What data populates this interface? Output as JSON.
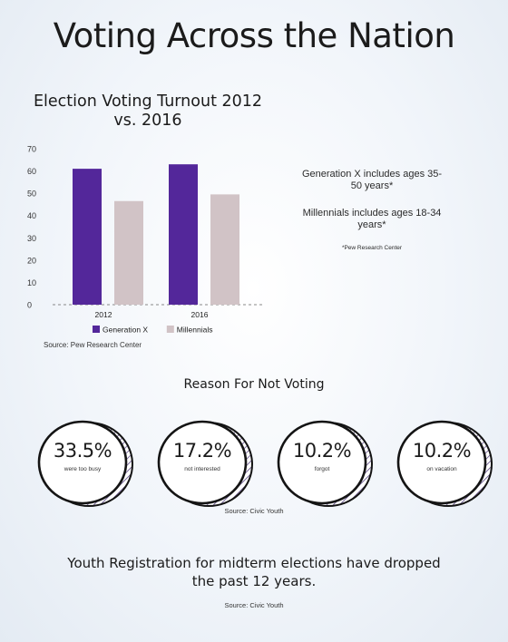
{
  "title": "Voting Across the Nation",
  "chart_data": {
    "type": "bar",
    "title": "Election Voting Turnout 2012 vs. 2016",
    "categories": [
      "2012",
      "2016"
    ],
    "series": [
      {
        "name": "Generation X",
        "values": [
          61,
          63
        ],
        "color": "#53279a"
      },
      {
        "name": "Millennials",
        "values": [
          46.5,
          49.5
        ],
        "color": "#d1c3c6"
      }
    ],
    "ylim": [
      0,
      70
    ],
    "yticks": [
      0,
      10,
      20,
      30,
      40,
      50,
      60,
      70
    ],
    "xlabel": "",
    "ylabel": "",
    "grid": false,
    "legend": "bottom",
    "source": "Source: Pew Research Center"
  },
  "notes": {
    "genx": "Generation X includes ages 35-50 years*",
    "millennials": "Millennials includes ages 18-34 years*",
    "footnote": "*Pew Research Center"
  },
  "reasons": {
    "title": "Reason For Not Voting",
    "items": [
      {
        "value": "33.5%",
        "label": "were too busy"
      },
      {
        "value": "17.2%",
        "label": "not interested"
      },
      {
        "value": "10.2%",
        "label": "forgot"
      },
      {
        "value": "10.2%",
        "label": "on vacation"
      }
    ],
    "source": "Source: Civic Youth"
  },
  "youth": {
    "text": "Youth Registration for midterm elections have dropped the past 12 years.",
    "source": "Source: Civic Youth"
  }
}
